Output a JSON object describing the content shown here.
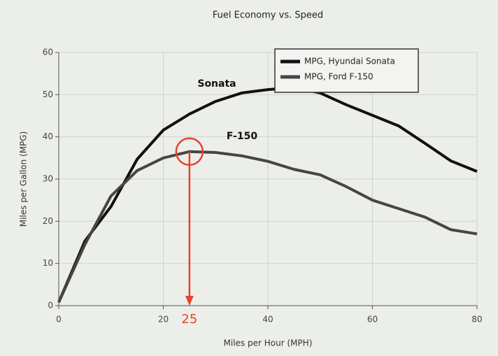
{
  "chart_data": {
    "type": "line",
    "title": "Fuel Economy vs. Speed",
    "x_label": "Miles per Hour (MPH)",
    "y_label": "Miles per Gallon (MPG)",
    "x": [
      0,
      5,
      10,
      15,
      20,
      25,
      30,
      35,
      40,
      45,
      50,
      55,
      60,
      65,
      70,
      75,
      80
    ],
    "series": [
      {
        "name": "MPG, Hyundai Sonata",
        "color": "#111111",
        "values": [
          0.8,
          15.3,
          23.5,
          34.7,
          41.6,
          45.4,
          48.4,
          50.4,
          51.2,
          51.7,
          50.4,
          47.6,
          45.1,
          42.6,
          38.5,
          34.3,
          31.8
        ]
      },
      {
        "name": "MPG, Ford F-150",
        "color": "#454545",
        "values": [
          0.8,
          14.5,
          26,
          32,
          35,
          36.5,
          36.3,
          35.5,
          34.2,
          32.3,
          31,
          28.2,
          25,
          23,
          21,
          18,
          17
        ]
      }
    ],
    "annotations": [
      "Sonata",
      "F-150"
    ],
    "highlight_x": 25,
    "highlight_color": "#e8432a",
    "xlim": [
      0,
      80
    ],
    "xticks": [
      0,
      20,
      40,
      60,
      80
    ],
    "ylim": [
      0,
      60
    ],
    "yticks": [
      0,
      10,
      20,
      30,
      40,
      50,
      60
    ],
    "grid": true,
    "legend": "upper right"
  }
}
